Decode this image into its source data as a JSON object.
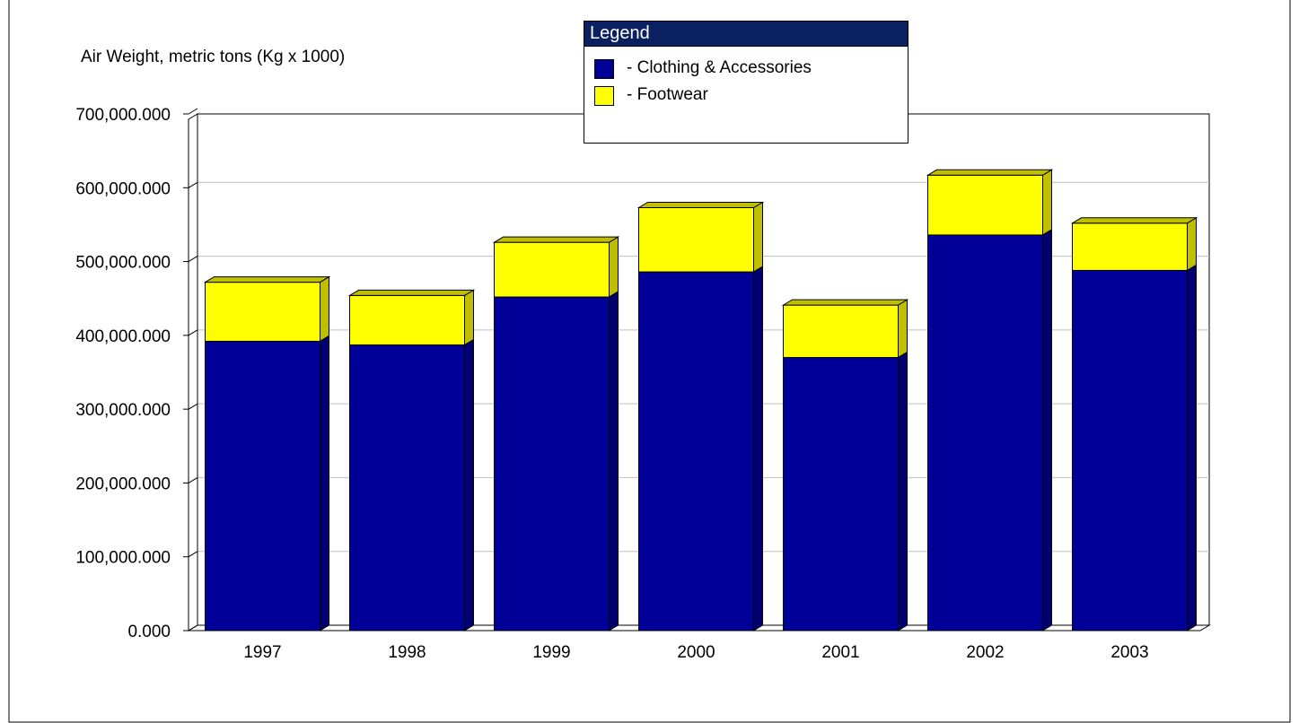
{
  "chart_data": {
    "type": "bar",
    "stacked": true,
    "three_d": true,
    "title": "",
    "xlabel": "",
    "ylabel": "Air Weight, metric tons (Kg x 1000)",
    "categories": [
      "1997",
      "1998",
      "1999",
      "2000",
      "2001",
      "2002",
      "2003"
    ],
    "series": [
      {
        "name": "- Clothing & Accessories",
        "color": "#000099",
        "values": [
          392000000,
          387000000,
          452000000,
          486000000,
          370000000,
          536000000,
          488000000
        ]
      },
      {
        "name": "- Footwear",
        "color": "#ffff00",
        "values": [
          80000000,
          67000000,
          74000000,
          87000000,
          71000000,
          81000000,
          64000000
        ]
      }
    ],
    "ylim": [
      0,
      700000000
    ],
    "yticks": [
      0,
      100000000,
      200000000,
      300000000,
      400000000,
      500000000,
      600000000,
      700000000
    ],
    "ytick_labels": [
      "0.000",
      "100,000.000",
      "200,000.000",
      "300,000.000",
      "400,000.000",
      "500,000.000",
      "600,000.000",
      "700,000.000"
    ],
    "grid": true,
    "legend": {
      "title": "Legend",
      "title_color": "#0a2061",
      "position": "top-center"
    }
  }
}
